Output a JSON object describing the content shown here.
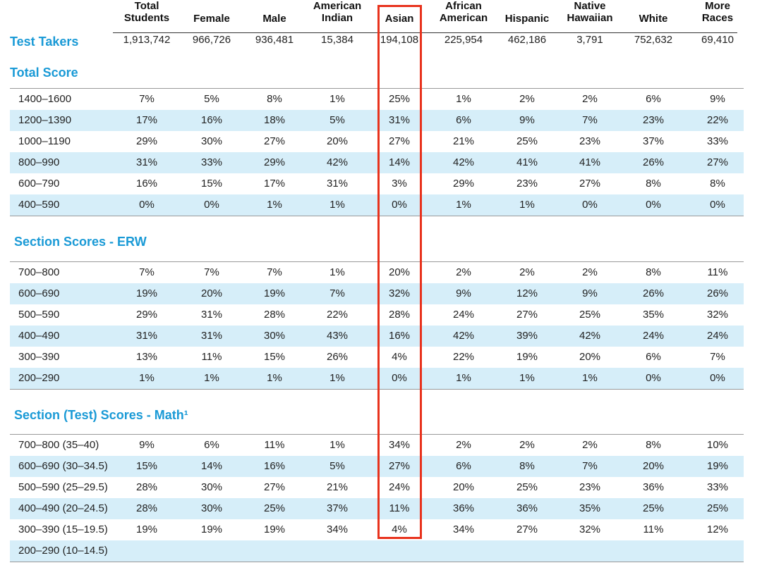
{
  "columns": [
    {
      "label": "Total\nStudents",
      "two_line": true
    },
    {
      "label": "Female",
      "two_line": false
    },
    {
      "label": "Male",
      "two_line": false
    },
    {
      "label": "American\nIndian",
      "two_line": true
    },
    {
      "label": "Asian",
      "two_line": false
    },
    {
      "label": "African\nAmerican",
      "two_line": true
    },
    {
      "label": "Hispanic",
      "two_line": false
    },
    {
      "label": "Native\nHawaiian",
      "two_line": true
    },
    {
      "label": "White",
      "two_line": false
    },
    {
      "label": "More\nRaces",
      "two_line": true
    }
  ],
  "test_takers": {
    "label": "Test Takers",
    "values": [
      "1,913,742",
      "966,726",
      "936,481",
      "15,384",
      "194,108",
      "225,954",
      "462,186",
      "3,791",
      "752,632",
      "69,410"
    ]
  },
  "sections": [
    {
      "title": "Total Score",
      "rows": [
        {
          "label": "1400–1600",
          "values": [
            "7%",
            "5%",
            "8%",
            "1%",
            "25%",
            "1%",
            "2%",
            "2%",
            "6%",
            "9%"
          ]
        },
        {
          "label": "1200–1390",
          "values": [
            "17%",
            "16%",
            "18%",
            "5%",
            "31%",
            "6%",
            "9%",
            "7%",
            "23%",
            "22%"
          ]
        },
        {
          "label": "1000–1190",
          "values": [
            "29%",
            "30%",
            "27%",
            "20%",
            "27%",
            "21%",
            "25%",
            "23%",
            "37%",
            "33%"
          ]
        },
        {
          "label": "800–990",
          "values": [
            "31%",
            "33%",
            "29%",
            "42%",
            "14%",
            "42%",
            "41%",
            "41%",
            "26%",
            "27%"
          ]
        },
        {
          "label": "600–790",
          "values": [
            "16%",
            "15%",
            "17%",
            "31%",
            "3%",
            "29%",
            "23%",
            "27%",
            "8%",
            "8%"
          ]
        },
        {
          "label": "400–590",
          "values": [
            "0%",
            "0%",
            "1%",
            "1%",
            "0%",
            "1%",
            "1%",
            "0%",
            "0%",
            "0%"
          ]
        }
      ]
    },
    {
      "title": "Section Scores - ERW",
      "rows": [
        {
          "label": "700–800",
          "values": [
            "7%",
            "7%",
            "7%",
            "1%",
            "20%",
            "2%",
            "2%",
            "2%",
            "8%",
            "11%"
          ]
        },
        {
          "label": "600–690",
          "values": [
            "19%",
            "20%",
            "19%",
            "7%",
            "32%",
            "9%",
            "12%",
            "9%",
            "26%",
            "26%"
          ]
        },
        {
          "label": "500–590",
          "values": [
            "29%",
            "31%",
            "28%",
            "22%",
            "28%",
            "24%",
            "27%",
            "25%",
            "35%",
            "32%"
          ]
        },
        {
          "label": "400–490",
          "values": [
            "31%",
            "31%",
            "30%",
            "43%",
            "16%",
            "42%",
            "39%",
            "42%",
            "24%",
            "24%"
          ]
        },
        {
          "label": "300–390",
          "values": [
            "13%",
            "11%",
            "15%",
            "26%",
            "4%",
            "22%",
            "19%",
            "20%",
            "6%",
            "7%"
          ]
        },
        {
          "label": "200–290",
          "values": [
            "1%",
            "1%",
            "1%",
            "1%",
            "0%",
            "1%",
            "1%",
            "1%",
            "0%",
            "0%"
          ]
        }
      ]
    },
    {
      "title": "Section (Test) Scores - Math¹",
      "rows": [
        {
          "label": "700–800 (35–40)",
          "values": [
            "9%",
            "6%",
            "11%",
            "1%",
            "34%",
            "2%",
            "2%",
            "2%",
            "8%",
            "10%"
          ]
        },
        {
          "label": "600–690 (30–34.5)",
          "values": [
            "15%",
            "14%",
            "16%",
            "5%",
            "27%",
            "6%",
            "8%",
            "7%",
            "20%",
            "19%"
          ]
        },
        {
          "label": "500–590 (25–29.5)",
          "values": [
            "28%",
            "30%",
            "27%",
            "21%",
            "24%",
            "20%",
            "25%",
            "23%",
            "36%",
            "33%"
          ]
        },
        {
          "label": "400–490 (20–24.5)",
          "values": [
            "28%",
            "30%",
            "25%",
            "37%",
            "11%",
            "36%",
            "36%",
            "35%",
            "25%",
            "25%"
          ]
        },
        {
          "label": "300–390 (15–19.5)",
          "values": [
            "19%",
            "19%",
            "19%",
            "34%",
            "4%",
            "34%",
            "27%",
            "32%",
            "11%",
            "12%"
          ]
        },
        {
          "label": "200–290 (10–14.5)",
          "values": [
            "",
            "",
            "",
            "",
            "",
            "",
            "",
            "",
            "",
            ""
          ]
        }
      ]
    }
  ],
  "colors": {
    "accent": "#1a9ad6",
    "row_shade": "#d6eef9",
    "highlight": "#e8321c"
  }
}
